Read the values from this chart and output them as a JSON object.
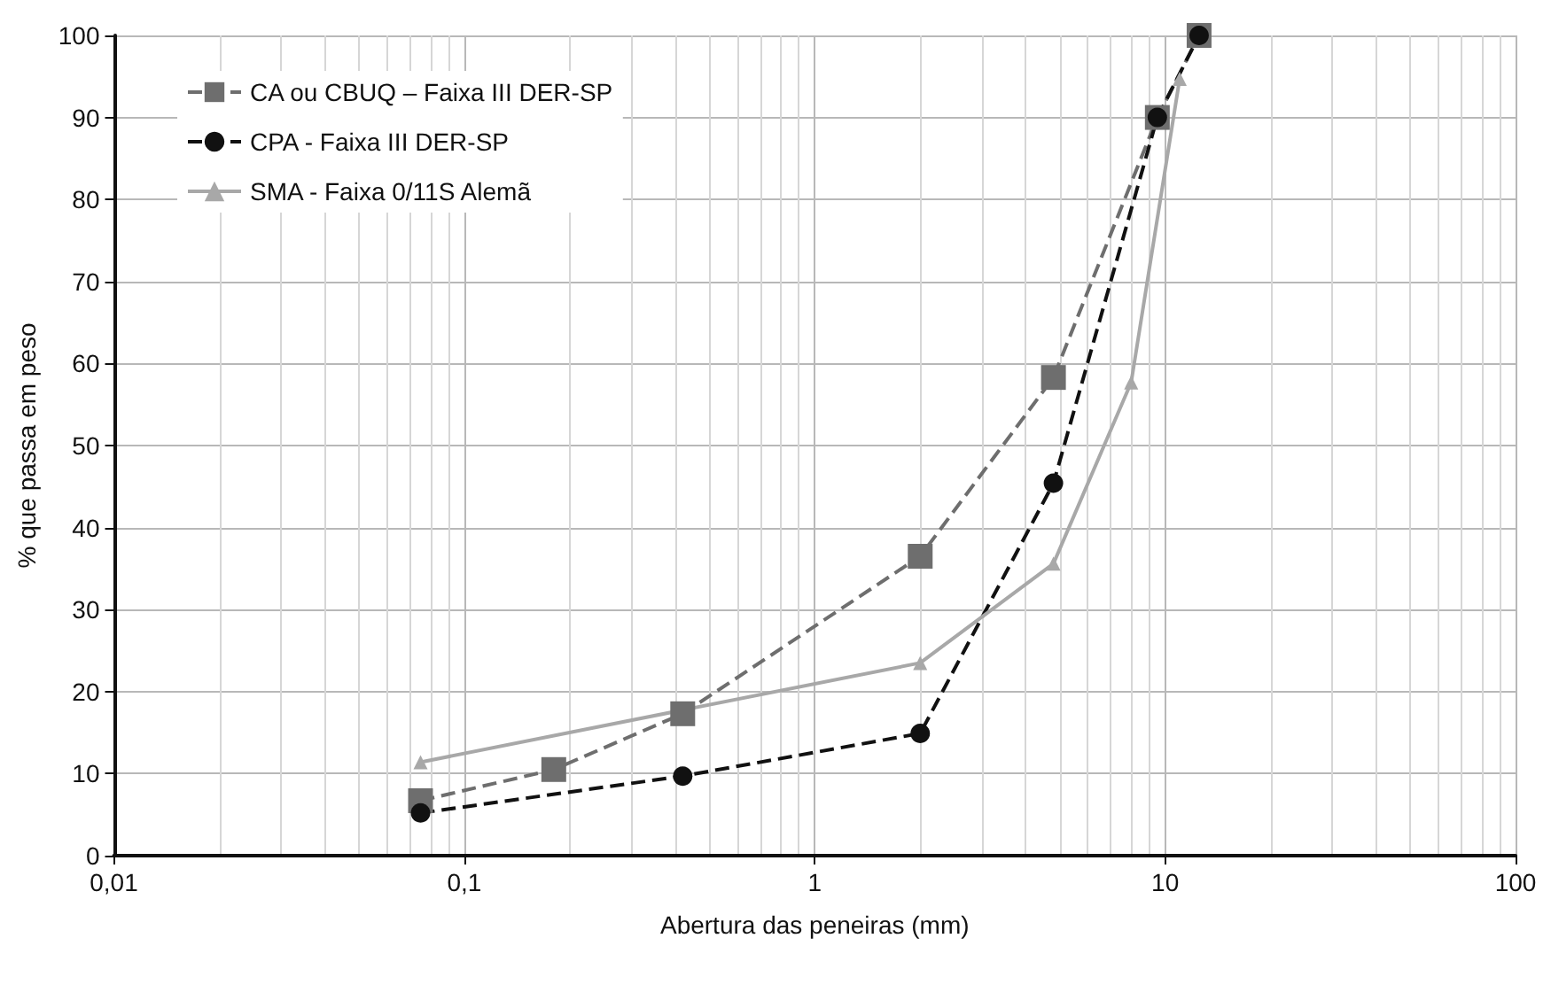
{
  "chart_data": {
    "type": "line",
    "xlabel": "Abertura das peneiras (mm)",
    "ylabel": "% que passa em peso",
    "log": "x",
    "grid": true,
    "legend": "top left",
    "xlim": [
      0.01,
      100
    ],
    "xticks": [
      {
        "value": 0.01,
        "label": "0,01"
      },
      {
        "value": 0.1,
        "label": "0,1"
      },
      1,
      10,
      100
    ],
    "ylim": [
      0,
      100
    ],
    "yticks": [
      0,
      10,
      20,
      30,
      40,
      50,
      60,
      70,
      80,
      90,
      100
    ],
    "series": [
      {
        "name": "CA ou CBUQ – Faixa III DER-SP",
        "color": "#6e6e6e",
        "marker": "square",
        "line_style": "dashed",
        "x": [
          0.075,
          0.18,
          0.42,
          2.0,
          4.8,
          9.5,
          12.5
        ],
        "values": [
          6.7,
          10.5,
          17.3,
          36.5,
          58.3,
          90,
          100
        ]
      },
      {
        "name": "CPA - Faixa III DER-SP",
        "color": "#111111",
        "marker": "circle",
        "line_style": "dashed",
        "x": [
          0.075,
          0.42,
          2.0,
          4.8,
          9.5,
          12.5
        ],
        "values": [
          5.2,
          9.7,
          14.9,
          45.4,
          90,
          100
        ]
      },
      {
        "name": "SMA - Faixa 0/11S Alemã",
        "color": "#a8a8a8",
        "marker": "triangle",
        "line_style": "solid",
        "x": [
          0.075,
          2.0,
          4.8,
          8,
          11
        ],
        "values": [
          11.4,
          23.5,
          35.6,
          57.7,
          94.7
        ]
      }
    ]
  }
}
